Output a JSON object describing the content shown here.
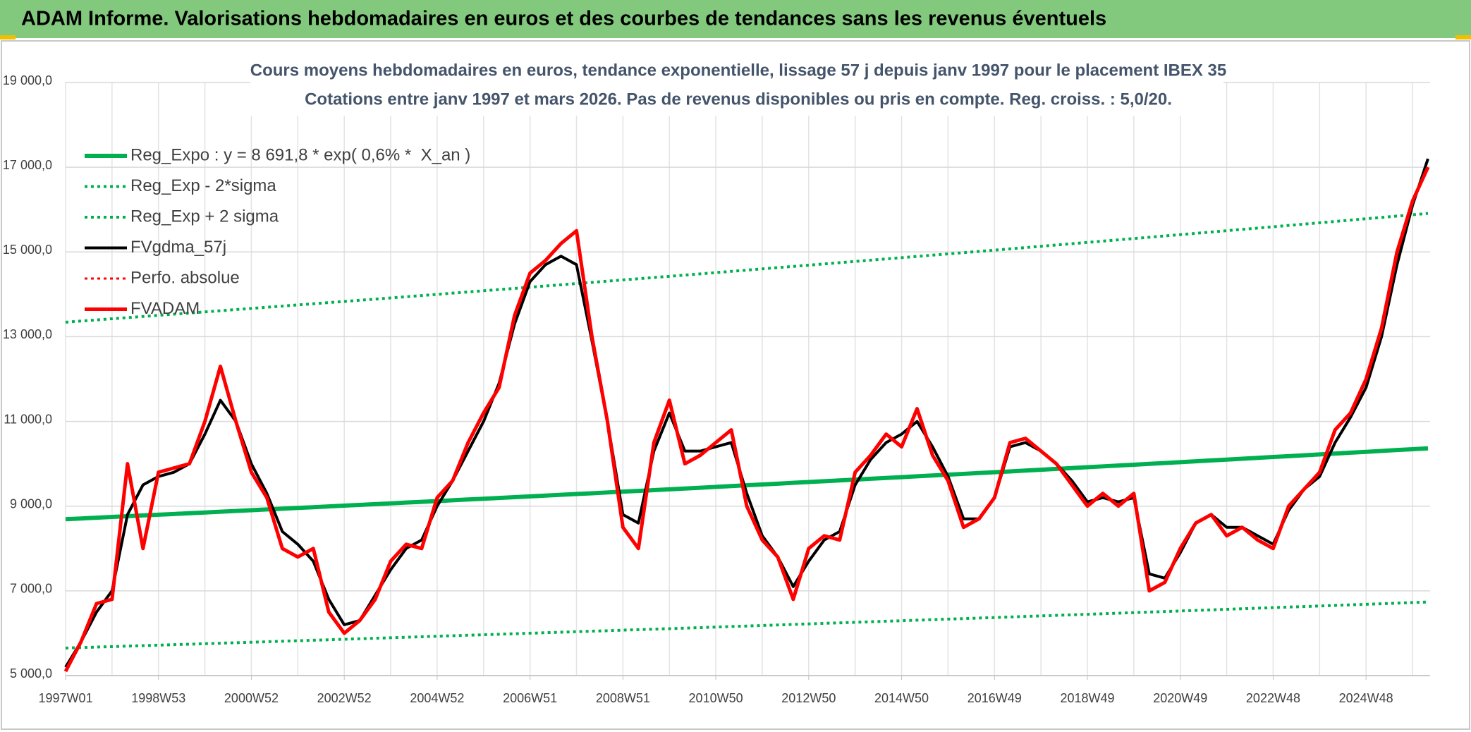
{
  "header": {
    "title": "ADAM Informe. Valorisations hebdomadaires en euros et des courbes de tendances sans les revenus éventuels"
  },
  "chart_data": {
    "type": "line",
    "title": "Cours moyens hebdomadaires en euros, tendance exponentielle, lissage 57 j depuis janv 1997 pour le placement IBEX 35",
    "subtitle": "Cotations entre janv 1997 et mars 2026. Pas de revenus disponibles ou pris en compte. Reg. croiss. : 5,0/20.",
    "categories": [
      "1997W01",
      null,
      null,
      null,
      null,
      null,
      "1998W53",
      null,
      null,
      null,
      null,
      null,
      "2000W52",
      null,
      null,
      null,
      null,
      null,
      "2002W52",
      null,
      null,
      null,
      null,
      null,
      "2004W52",
      null,
      null,
      null,
      null,
      null,
      "2006W51",
      null,
      null,
      null,
      null,
      null,
      "2008W51",
      null,
      null,
      null,
      null,
      null,
      "2010W50",
      null,
      null,
      null,
      null,
      null,
      "2012W50",
      null,
      null,
      null,
      null,
      null,
      "2014W50",
      null,
      null,
      null,
      null,
      null,
      "2016W49",
      null,
      null,
      null,
      null,
      null,
      "2018W49",
      null,
      null,
      null,
      null,
      null,
      "2020W49",
      null,
      null,
      null,
      null,
      null,
      "2022W48",
      null,
      null,
      null,
      null,
      null,
      "2024W48",
      null,
      null,
      null,
      null
    ],
    "series": [
      {
        "name": "Reg_Expo : y = 8 691,8 * exp( 0,6% *  X_an )",
        "color": "#00b050",
        "style": "solid",
        "width": 6,
        "values": [
          8692,
          8709,
          8727,
          8745,
          8762,
          8780,
          8797,
          8815,
          8833,
          8850,
          8868,
          8886,
          8904,
          8922,
          8940,
          8958,
          8975,
          8993,
          9011,
          9029,
          9047,
          9065,
          9084,
          9102,
          9120,
          9138,
          9157,
          9175,
          9193,
          9212,
          9230,
          9249,
          9267,
          9286,
          9304,
          9323,
          9342,
          9360,
          9379,
          9397,
          9416,
          9435,
          9454,
          9473,
          9492,
          9512,
          9531,
          9550,
          9569,
          9588,
          9607,
          9626,
          9646,
          9665,
          9684,
          9704,
          9723,
          9742,
          9762,
          9781,
          9800,
          9820,
          9840,
          9859,
          9879,
          9899,
          9919,
          9939,
          9958,
          9978,
          9998,
          10018,
          10038,
          10059,
          10079,
          10099,
          10119,
          10139,
          10160,
          10180,
          10200,
          10221,
          10241,
          10262,
          10282,
          10303,
          10324,
          10344,
          10365
        ]
      },
      {
        "name": "Reg_Exp - 2*sigma",
        "color": "#00b050",
        "style": "dotted",
        "width": 4,
        "values": [
          5650,
          5661,
          5673,
          5684,
          5696,
          5707,
          5718,
          5730,
          5741,
          5753,
          5764,
          5776,
          5787,
          5799,
          5811,
          5823,
          5834,
          5846,
          5858,
          5869,
          5881,
          5893,
          5905,
          5917,
          5929,
          5941,
          5952,
          5964,
          5976,
          5988,
          6000,
          6012,
          6024,
          6036,
          6048,
          6060,
          6072,
          6084,
          6096,
          6108,
          6120,
          6133,
          6145,
          6158,
          6170,
          6183,
          6195,
          6208,
          6220,
          6233,
          6245,
          6258,
          6270,
          6283,
          6295,
          6308,
          6320,
          6333,
          6345,
          6358,
          6370,
          6383,
          6396,
          6409,
          6422,
          6435,
          6447,
          6460,
          6473,
          6486,
          6499,
          6512,
          6525,
          6538,
          6551,
          6565,
          6578,
          6591,
          6604,
          6617,
          6630,
          6643,
          6657,
          6670,
          6683,
          6697,
          6710,
          6724,
          6737
        ]
      },
      {
        "name": "Reg_Exp + 2 sigma",
        "color": "#00b050",
        "style": "dotted",
        "width": 4,
        "values": [
          13342,
          13369,
          13396,
          13423,
          13450,
          13477,
          13504,
          13531,
          13558,
          13585,
          13612,
          13640,
          13667,
          13695,
          13722,
          13750,
          13777,
          13805,
          13832,
          13860,
          13887,
          13915,
          13943,
          13971,
          13999,
          14028,
          14056,
          14084,
          14112,
          14140,
          14168,
          14197,
          14225,
          14254,
          14282,
          14311,
          14340,
          14368,
          14397,
          14425,
          14454,
          14483,
          14513,
          14542,
          14571,
          14601,
          14630,
          14659,
          14688,
          14718,
          14747,
          14777,
          14806,
          14836,
          14865,
          14895,
          14925,
          14954,
          14984,
          15013,
          15043,
          15073,
          15104,
          15134,
          15165,
          15195,
          15225,
          15256,
          15286,
          15317,
          15347,
          15378,
          15409,
          15440,
          15471,
          15502,
          15533,
          15564,
          15595,
          15626,
          15657,
          15689,
          15720,
          15752,
          15784,
          15815,
          15847,
          15878,
          15910
        ]
      },
      {
        "name": "FVgdma_57j",
        "color": "#000000",
        "style": "solid",
        "width": 4,
        "values": [
          5200,
          5800,
          6500,
          7000,
          8800,
          9500,
          9700,
          9800,
          10000,
          10700,
          11500,
          11000,
          10000,
          9300,
          8400,
          8100,
          7700,
          6800,
          6200,
          6300,
          6900,
          7500,
          8000,
          8200,
          9000,
          9600,
          10300,
          11000,
          11900,
          13300,
          14300,
          14700,
          14900,
          14700,
          12900,
          11000,
          8800,
          8600,
          10300,
          11200,
          10300,
          10300,
          10400,
          10500,
          9300,
          8300,
          7800,
          7100,
          7700,
          8200,
          8400,
          9500,
          10100,
          10500,
          10700,
          11000,
          10400,
          9700,
          8700,
          8700,
          9200,
          10400,
          10500,
          10300,
          10000,
          9600,
          9100,
          9200,
          9100,
          9200,
          7400,
          7300,
          7900,
          8600,
          8800,
          8500,
          8500,
          8300,
          8100,
          8900,
          9400,
          9700,
          10500,
          11100,
          11800,
          13000,
          14700,
          16100,
          17200
        ]
      },
      {
        "name": "Perfo. absolue",
        "color": "#ff0000",
        "style": "dotted",
        "width": 3,
        "values": [
          null,
          null,
          null,
          null,
          null,
          null,
          null,
          null,
          null,
          null,
          null,
          null,
          null,
          null,
          null,
          null,
          null,
          null,
          null,
          null,
          null,
          null,
          null,
          null,
          null,
          null,
          null,
          null,
          null,
          null,
          null,
          null,
          null,
          null,
          null,
          null,
          null,
          null,
          null,
          null,
          null,
          null,
          null,
          null,
          null,
          null,
          null,
          null,
          null,
          null,
          null,
          null,
          null,
          null,
          null,
          null,
          null,
          null,
          null,
          null,
          null,
          null,
          null,
          null,
          null,
          null,
          null,
          null,
          null,
          null,
          null,
          null,
          null,
          null,
          null,
          null,
          null,
          null,
          null,
          null,
          null,
          null,
          null,
          null,
          null,
          null,
          null,
          null,
          null
        ]
      },
      {
        "name": "FVADAM",
        "color": "#ff0000",
        "style": "solid",
        "width": 5,
        "values": [
          5100,
          5800,
          6700,
          6800,
          10000,
          8000,
          9800,
          9900,
          10000,
          11000,
          12300,
          11000,
          9800,
          9200,
          8000,
          7800,
          8000,
          6500,
          6000,
          6300,
          6800,
          7700,
          8100,
          8000,
          9200,
          9600,
          10500,
          11200,
          11800,
          13500,
          14500,
          14800,
          15200,
          15500,
          13000,
          11000,
          8500,
          8000,
          10500,
          11500,
          10000,
          10200,
          10500,
          10800,
          9000,
          8200,
          7800,
          6800,
          8000,
          8300,
          8200,
          9800,
          10200,
          10700,
          10400,
          11300,
          10200,
          9600,
          8500,
          8700,
          9200,
          10500,
          10600,
          10300,
          10000,
          9500,
          9000,
          9300,
          9000,
          9300,
          7000,
          7200,
          8000,
          8600,
          8800,
          8300,
          8500,
          8200,
          8000,
          9000,
          9400,
          9800,
          10800,
          11200,
          12000,
          13200,
          15000,
          16200,
          17000
        ]
      }
    ],
    "ylim": [
      5000,
      19000
    ],
    "yticks": [
      {
        "value": 5000,
        "label": "5 000,0"
      },
      {
        "value": 7000,
        "label": "7 000,0"
      },
      {
        "value": 9000,
        "label": "9 000,0"
      },
      {
        "value": 11000,
        "label": "11 000,0"
      },
      {
        "value": 13000,
        "label": "13 000,0"
      },
      {
        "value": 15000,
        "label": "15 000,0"
      },
      {
        "value": 17000,
        "label": "17 000,0"
      },
      {
        "value": 19000,
        "label": "19 000,0"
      }
    ],
    "grid": true,
    "legend": "upper left"
  }
}
